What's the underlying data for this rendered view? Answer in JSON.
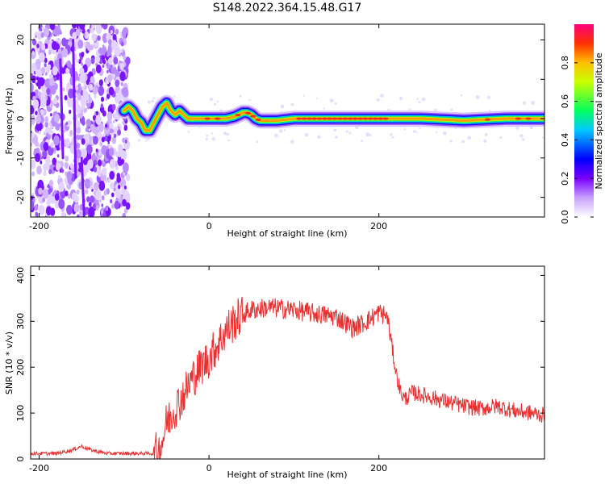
{
  "title": "S148.2022.364.15.48.G17",
  "chart_data": [
    {
      "type": "heatmap",
      "xlabel": "Height of straight line (km)",
      "ylabel": "Frequency (Hz)",
      "xlim": [
        -210,
        395
      ],
      "ylim": [
        -25,
        24
      ],
      "x_ticks": [
        -200,
        0,
        200
      ],
      "y_ticks": [
        20,
        10,
        0,
        -10,
        -20
      ],
      "colorbar": {
        "label": "Normalized spectral amplitude",
        "ticks": [
          "0.0",
          "0.2",
          "0.4",
          "0.6",
          "0.8"
        ],
        "range": [
          0,
          1
        ],
        "colors": [
          "#ffffff",
          "#c8a0ff",
          "#7a00ff",
          "#0000ff",
          "#00c8ff",
          "#00ff60",
          "#c8ff00",
          "#ffc000",
          "#ff3000",
          "#ff0080"
        ]
      },
      "ridge": {
        "x": [
          -100,
          -95,
          -90,
          -85,
          -80,
          -75,
          -70,
          -65,
          -60,
          -55,
          -50,
          -45,
          -40,
          -35,
          -30,
          -25,
          -20,
          -10,
          0,
          10,
          20,
          30,
          35,
          40,
          45,
          50,
          55,
          60,
          70,
          80,
          100,
          150,
          200,
          250,
          300,
          350,
          395
        ],
        "freq": [
          2,
          3,
          2,
          0,
          -1,
          -3,
          -3,
          -1,
          1,
          3,
          4,
          2,
          1,
          2,
          1,
          0,
          0,
          0,
          0,
          0,
          0,
          0.5,
          1,
          1.5,
          1.5,
          1,
          0,
          -0.5,
          -0.5,
          -0.5,
          0,
          0,
          0,
          0,
          -0.5,
          0,
          0
        ]
      },
      "noise_region_x": [
        -210,
        -95
      ]
    },
    {
      "type": "line",
      "xlabel": "Height of straight line (km)",
      "ylabel": "SNR (10 * v/v)",
      "xlim": [
        -210,
        395
      ],
      "ylim": [
        0,
        420
      ],
      "x_ticks": [
        -200,
        0,
        200
      ],
      "y_ticks": [
        0,
        100,
        200,
        300,
        400
      ],
      "series": [
        {
          "color": "#e8302e",
          "x": [
            -210,
            -180,
            -160,
            -150,
            -140,
            -120,
            -100,
            -80,
            -65,
            -60,
            -55,
            -50,
            -40,
            -30,
            -20,
            -10,
            0,
            10,
            20,
            30,
            40,
            50,
            70,
            100,
            130,
            150,
            170,
            190,
            200,
            210,
            215,
            220,
            225,
            230,
            240,
            260,
            280,
            300,
            320,
            340,
            360,
            380,
            395
          ],
          "y": [
            12,
            12,
            20,
            28,
            20,
            12,
            12,
            12,
            12,
            15,
            40,
            80,
            110,
            140,
            175,
            200,
            220,
            250,
            280,
            300,
            315,
            325,
            330,
            325,
            315,
            310,
            285,
            305,
            320,
            310,
            250,
            190,
            150,
            130,
            145,
            135,
            125,
            115,
            110,
            115,
            105,
            100,
            95
          ]
        }
      ]
    }
  ]
}
